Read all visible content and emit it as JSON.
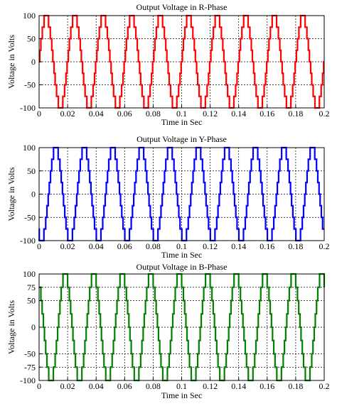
{
  "chart_data": [
    {
      "type": "line",
      "title": "Output Voltage in R-Phase",
      "xlabel": "Time in Sec",
      "ylabel": "Voltage in Volts",
      "xlim": [
        0,
        0.2
      ],
      "ylim": [
        -100,
        100
      ],
      "x_ticks": [
        "0",
        "0.02",
        "0.04",
        "0.06",
        "0.08",
        "0.1",
        "0.12",
        "0.14",
        "0.16",
        "0.18",
        "0.2"
      ],
      "y_ticks": [
        "100",
        "50",
        "0",
        "-50",
        "-100"
      ],
      "grid": true,
      "color": "#ff0000",
      "frequency_hz": 50,
      "phase_deg": 0,
      "levels": [
        -100,
        -75,
        -50,
        -25,
        0,
        25,
        50,
        75,
        100
      ],
      "series": [
        {
          "waveform": "multilevel staircase sine",
          "amplitude": 100
        }
      ]
    },
    {
      "type": "line",
      "title": "Output Voltage in Y-Phase",
      "xlabel": "Time in Sec",
      "ylabel": "Voltage in Volts",
      "xlim": [
        0,
        0.2
      ],
      "ylim": [
        -100,
        100
      ],
      "x_ticks": [
        "0",
        "0.02",
        "0.04",
        "0.06",
        "0.08",
        "0.1",
        "0.12",
        "0.14",
        "0.16",
        "0.18",
        "0.2"
      ],
      "y_ticks": [
        "100",
        "50",
        "0",
        "-50",
        "-100"
      ],
      "grid": true,
      "color": "#0000ff",
      "frequency_hz": 50,
      "phase_deg": -120,
      "levels": [
        -100,
        -75,
        -50,
        -25,
        0,
        25,
        50,
        75,
        100
      ],
      "series": [
        {
          "waveform": "multilevel staircase sine",
          "amplitude": 100
        }
      ]
    },
    {
      "type": "line",
      "title": "Output Voltage in B-Phase",
      "xlabel": "Time in Sec",
      "ylabel": "Voltage in Volts",
      "xlim": [
        0,
        0.2
      ],
      "ylim": [
        -100,
        100
      ],
      "x_ticks": [
        "0",
        "0.02",
        "0.04",
        "0.06",
        "0.08",
        "0.1",
        "0.12",
        "0.14",
        "0.16",
        "0.18",
        "0.2"
      ],
      "y_ticks": [
        "100",
        "75",
        "50",
        "0",
        "-50",
        "-75",
        "-100"
      ],
      "grid": true,
      "color": "#008000",
      "frequency_hz": 50,
      "phase_deg": 120,
      "levels": [
        -100,
        -75,
        -50,
        -25,
        0,
        25,
        50,
        75,
        100
      ],
      "series": [
        {
          "waveform": "multilevel staircase sine",
          "amplitude": 100
        }
      ]
    }
  ]
}
